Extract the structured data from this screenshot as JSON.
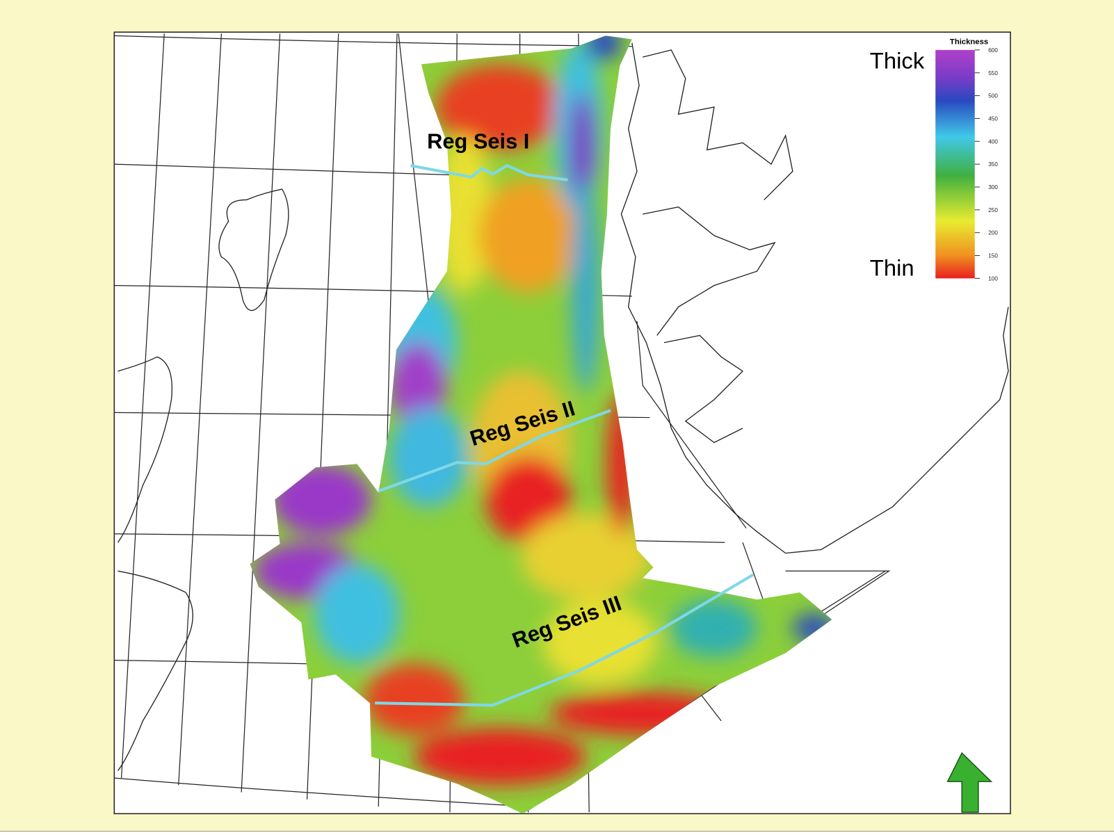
{
  "map": {
    "legend": {
      "title": "Thickness",
      "high_label": "Thick",
      "low_label": "Thin",
      "ticks": [
        600,
        550,
        500,
        450,
        400,
        350,
        300,
        250,
        200,
        150,
        100
      ]
    },
    "lines": [
      {
        "label": "Reg Seis I"
      },
      {
        "label": "Reg Seis II"
      },
      {
        "label": "Reg Seis III"
      }
    ]
  }
}
